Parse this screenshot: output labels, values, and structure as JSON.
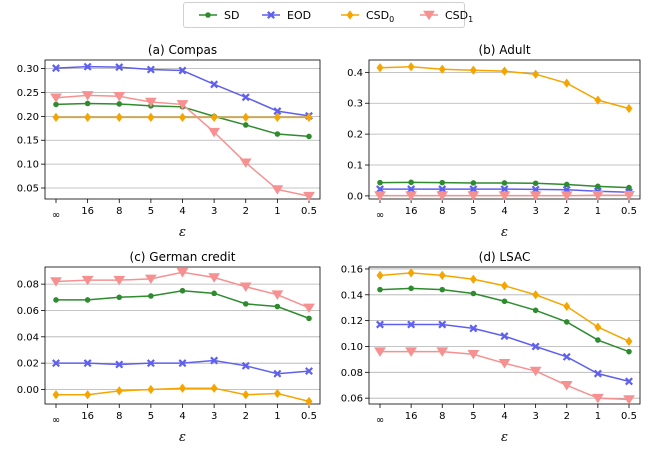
{
  "legend": {
    "placement": "top-center",
    "entries": [
      {
        "name": "SD",
        "base": "SD",
        "sub": "",
        "color": "#2e8b2e",
        "marker": "circle"
      },
      {
        "name": "EOD",
        "base": "EOD",
        "sub": "",
        "color": "#6060ee",
        "marker": "x"
      },
      {
        "name": "CSD0",
        "base": "CSD",
        "sub": "0",
        "color": "#f5a500",
        "marker": "diamond"
      },
      {
        "name": "CSD1",
        "base": "CSD",
        "sub": "1",
        "color": "#f79090",
        "marker": "triangle-down"
      }
    ]
  },
  "chart_data": [
    {
      "type": "line",
      "title": "(a) Compas",
      "xlabel": "ε",
      "ylabel": "",
      "categories": [
        "∞",
        "16",
        "8",
        "5",
        "4",
        "3",
        "2",
        "1",
        "0.5"
      ],
      "ylim": [
        0.027,
        0.318
      ],
      "yticks": [
        0.05,
        0.1,
        0.15,
        0.2,
        0.25,
        0.3
      ],
      "ytick_labels": [
        "0.05",
        "0.10",
        "0.15",
        "0.20",
        "0.25",
        "0.30"
      ],
      "grid": "horizontal",
      "series": [
        {
          "name": "SD",
          "values": [
            0.225,
            0.227,
            0.226,
            0.222,
            0.22,
            0.2,
            0.182,
            0.163,
            0.158
          ]
        },
        {
          "name": "EOD",
          "values": [
            0.301,
            0.304,
            0.303,
            0.298,
            0.296,
            0.267,
            0.24,
            0.211,
            0.201
          ]
        },
        {
          "name": "CSD0",
          "values": [
            0.198,
            0.198,
            0.198,
            0.198,
            0.198,
            0.198,
            0.198,
            0.198,
            0.198
          ]
        },
        {
          "name": "CSD1",
          "values": [
            0.239,
            0.244,
            0.242,
            0.23,
            0.225,
            0.167,
            0.103,
            0.047,
            0.033
          ]
        }
      ]
    },
    {
      "type": "line",
      "title": "(b) Adult",
      "xlabel": "ε",
      "ylabel": "",
      "categories": [
        "∞",
        "16",
        "8",
        "5",
        "4",
        "3",
        "2",
        "1",
        "0.5"
      ],
      "ylim": [
        -0.01,
        0.44
      ],
      "yticks": [
        0.0,
        0.1,
        0.2,
        0.3,
        0.4
      ],
      "ytick_labels": [
        "0.0",
        "0.1",
        "0.2",
        "0.3",
        "0.4"
      ],
      "grid": "horizontal",
      "series": [
        {
          "name": "SD",
          "values": [
            0.043,
            0.044,
            0.043,
            0.042,
            0.042,
            0.041,
            0.037,
            0.031,
            0.027
          ]
        },
        {
          "name": "EOD",
          "values": [
            0.022,
            0.022,
            0.022,
            0.022,
            0.022,
            0.021,
            0.02,
            0.015,
            0.012
          ]
        },
        {
          "name": "CSD0",
          "values": [
            0.415,
            0.418,
            0.41,
            0.407,
            0.404,
            0.394,
            0.365,
            0.31,
            0.283
          ]
        },
        {
          "name": "CSD1",
          "values": [
            0.001,
            0.001,
            0.001,
            0.001,
            0.001,
            0.001,
            0.001,
            0.002,
            0.002
          ]
        }
      ]
    },
    {
      "type": "line",
      "title": "(c) German credit",
      "xlabel": "ε",
      "ylabel": "",
      "categories": [
        "∞",
        "16",
        "8",
        "5",
        "4",
        "3",
        "2",
        "1",
        "0.5"
      ],
      "ylim": [
        -0.011,
        0.093
      ],
      "yticks": [
        0.0,
        0.02,
        0.04,
        0.06,
        0.08
      ],
      "ytick_labels": [
        "0.00",
        "0.02",
        "0.04",
        "0.06",
        "0.08"
      ],
      "grid": "horizontal",
      "series": [
        {
          "name": "SD",
          "values": [
            0.068,
            0.068,
            0.07,
            0.071,
            0.075,
            0.073,
            0.065,
            0.063,
            0.054
          ]
        },
        {
          "name": "EOD",
          "values": [
            0.02,
            0.02,
            0.019,
            0.02,
            0.02,
            0.022,
            0.018,
            0.012,
            0.014
          ]
        },
        {
          "name": "CSD0",
          "values": [
            -0.004,
            -0.004,
            -0.001,
            0.0,
            0.001,
            0.001,
            -0.004,
            -0.003,
            -0.009
          ]
        },
        {
          "name": "CSD1",
          "values": [
            0.082,
            0.083,
            0.083,
            0.084,
            0.089,
            0.085,
            0.078,
            0.072,
            0.062
          ]
        }
      ]
    },
    {
      "type": "line",
      "title": "(d) LSAC",
      "xlabel": "ε",
      "ylabel": "",
      "categories": [
        "∞",
        "16",
        "8",
        "5",
        "4",
        "3",
        "2",
        "1",
        "0.5"
      ],
      "ylim": [
        0.0555,
        0.1615
      ],
      "yticks": [
        0.06,
        0.08,
        0.1,
        0.12,
        0.14,
        0.16
      ],
      "ytick_labels": [
        "0.06",
        "0.08",
        "0.10",
        "0.12",
        "0.14",
        "0.16"
      ],
      "grid": "horizontal",
      "series": [
        {
          "name": "SD",
          "values": [
            0.144,
            0.145,
            0.144,
            0.141,
            0.135,
            0.128,
            0.119,
            0.105,
            0.096
          ]
        },
        {
          "name": "EOD",
          "values": [
            0.117,
            0.117,
            0.117,
            0.114,
            0.108,
            0.1,
            0.092,
            0.079,
            0.073
          ]
        },
        {
          "name": "CSD0",
          "values": [
            0.155,
            0.157,
            0.155,
            0.152,
            0.147,
            0.14,
            0.131,
            0.115,
            0.104
          ]
        },
        {
          "name": "CSD1",
          "values": [
            0.096,
            0.096,
            0.096,
            0.094,
            0.087,
            0.081,
            0.07,
            0.06,
            0.059
          ]
        }
      ]
    }
  ]
}
